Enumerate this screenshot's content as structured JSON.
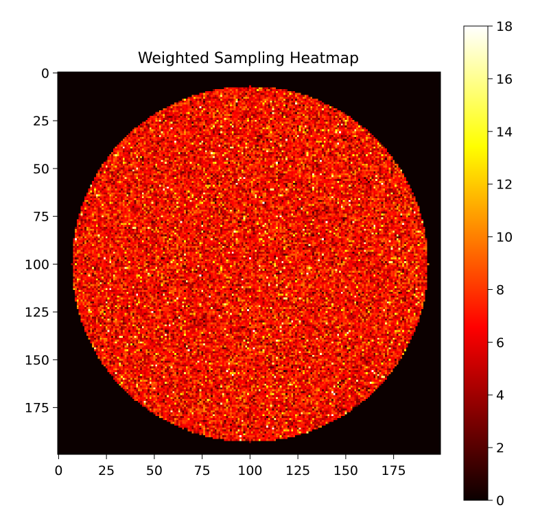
{
  "chart_data": {
    "type": "heatmap",
    "title": "Weighted Sampling Heatmap",
    "xlabel": "",
    "ylabel": "",
    "grid_size": [
      200,
      200
    ],
    "x_range": [
      0,
      199
    ],
    "y_range": [
      0,
      199
    ],
    "y_axis_inverted": true,
    "x_ticks": [
      0,
      25,
      50,
      75,
      100,
      125,
      150,
      175
    ],
    "y_ticks": [
      0,
      25,
      50,
      75,
      100,
      125,
      150,
      175
    ],
    "colormap": "hot",
    "colorbar": {
      "range": [
        0,
        18
      ],
      "ticks": [
        0,
        2,
        4,
        6,
        8,
        10,
        12,
        14,
        16,
        18
      ],
      "placement": "right"
    },
    "region": {
      "shape": "circle",
      "center": [
        100,
        100
      ],
      "radius": 93,
      "value_mean": 6.5,
      "value_spread": 3.5,
      "value_outside": 0
    },
    "grid": false
  }
}
